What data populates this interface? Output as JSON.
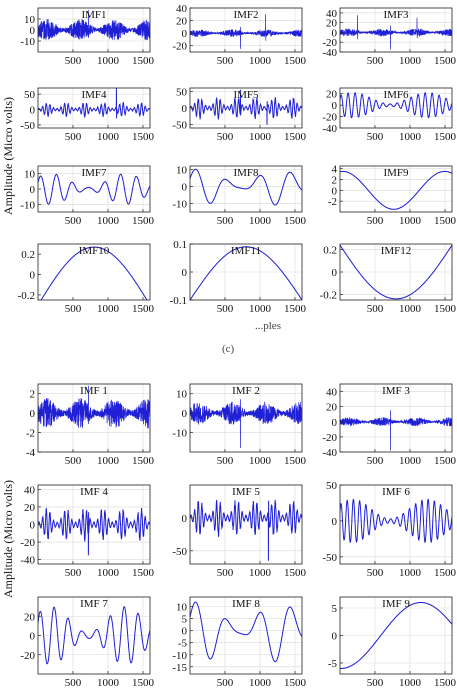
{
  "figure": {
    "ylabel": "Amplitude (Micro volts)",
    "xlabel": "...ples",
    "caption": "(c)"
  },
  "style": {
    "line_color": "#1f1fd6",
    "grid_color": "#d9d9d9",
    "axis_color": "#222222"
  },
  "chart_data": [
    {
      "type": "line",
      "group": "a",
      "title": "IMF1",
      "x_range": [
        1,
        1600
      ],
      "ylim": [
        -20,
        20
      ],
      "yticks": [
        -10,
        0,
        10
      ],
      "xticks": [
        500,
        1000,
        1500
      ],
      "mode": "noise",
      "amp": 10,
      "spikes": [
        [
          720,
          18
        ]
      ],
      "grid": true
    },
    {
      "type": "line",
      "group": "a",
      "title": "IMF2",
      "x_range": [
        1,
        1600
      ],
      "ylim": [
        -30,
        40
      ],
      "yticks": [
        -20,
        0,
        20,
        40
      ],
      "xticks": [
        500,
        1000,
        1500
      ],
      "mode": "noise",
      "amp": 6,
      "spikes": [
        [
          720,
          -25
        ],
        [
          1080,
          30
        ]
      ],
      "grid": true
    },
    {
      "type": "line",
      "group": "a",
      "title": "IMF3",
      "x_range": [
        1,
        1600
      ],
      "ylim": [
        -40,
        50
      ],
      "yticks": [
        -40,
        -20,
        0,
        20,
        40
      ],
      "xticks": [
        500,
        1000,
        1500
      ],
      "mode": "noise",
      "amp": 8,
      "spikes": [
        [
          720,
          -35
        ],
        [
          250,
          35
        ],
        [
          1100,
          30
        ]
      ],
      "grid": true
    },
    {
      "type": "line",
      "group": "a",
      "title": "IMF4",
      "x_range": [
        1,
        1600
      ],
      "ylim": [
        -60,
        70
      ],
      "yticks": [
        -50,
        0,
        50
      ],
      "xticks": [
        500,
        1000,
        1500
      ],
      "mode": "burst",
      "amp": 25,
      "spikes": [
        [
          1120,
          70
        ]
      ],
      "grid": true
    },
    {
      "type": "line",
      "group": "a",
      "title": "IMF5",
      "x_range": [
        1,
        1600
      ],
      "ylim": [
        -60,
        60
      ],
      "yticks": [
        -50,
        0,
        50
      ],
      "xticks": [
        500,
        1000,
        1500
      ],
      "mode": "burst",
      "amp": 35,
      "spikes": [
        [
          720,
          55
        ],
        [
          1100,
          -50
        ]
      ],
      "grid": true
    },
    {
      "type": "line",
      "group": "a",
      "title": "IMF6",
      "x_range": [
        1,
        1600
      ],
      "ylim": [
        -40,
        30
      ],
      "yticks": [
        -40,
        -20,
        0,
        20
      ],
      "xticks": [
        500,
        1000,
        1500
      ],
      "mode": "wave",
      "amp": 22,
      "cycles": 16,
      "grid": true
    },
    {
      "type": "line",
      "group": "a",
      "title": "IMF7",
      "x_range": [
        1,
        1600
      ],
      "ylim": [
        -15,
        15
      ],
      "yticks": [
        -10,
        0,
        10
      ],
      "xticks": [
        500,
        1000,
        1500
      ],
      "mode": "wave",
      "amp": 10,
      "cycles": 7,
      "grid": true
    },
    {
      "type": "line",
      "group": "a",
      "title": "IMF8",
      "x_range": [
        1,
        1600
      ],
      "ylim": [
        -15,
        12
      ],
      "yticks": [
        -10,
        0,
        10
      ],
      "xticks": [
        500,
        1000,
        1500
      ],
      "mode": "wave",
      "amp": 11,
      "cycles": 3.5,
      "grid": true
    },
    {
      "type": "line",
      "group": "a",
      "title": "IMF9",
      "x_range": [
        1,
        1600
      ],
      "ylim": [
        -4,
        4.5
      ],
      "yticks": [
        -2,
        0,
        2,
        4
      ],
      "xticks": [
        500,
        1000,
        1500
      ],
      "mode": "sine",
      "amp": 3.5,
      "cycles": 1.1,
      "phase": 1.4,
      "grid": true
    },
    {
      "type": "line",
      "group": "a",
      "title": "IMF10",
      "x_range": [
        1,
        1600
      ],
      "ylim": [
        -0.25,
        0.3
      ],
      "yticks": [
        -0.2,
        0,
        0.2
      ],
      "xticks": [
        500,
        1000,
        1500
      ],
      "mode": "arch",
      "amp": 0.3,
      "grid": false
    },
    {
      "type": "line",
      "group": "a",
      "title": "IMF11",
      "x_range": [
        1,
        1600
      ],
      "ylim": [
        -0.1,
        0.1
      ],
      "yticks": [
        -0.1,
        0,
        0.1
      ],
      "xticks": [
        500,
        1000,
        1500
      ],
      "mode": "arch",
      "amp": 0.1,
      "grid": true
    },
    {
      "type": "line",
      "group": "a",
      "title": "IMF12",
      "x_range": [
        1,
        1600
      ],
      "ylim": [
        -0.25,
        0.25
      ],
      "yticks": [
        -0.2,
        0,
        0.2
      ],
      "xticks": [
        500,
        1000,
        1500
      ],
      "mode": "bowl",
      "amp": 0.24,
      "grid": true
    },
    {
      "type": "line",
      "group": "b",
      "title": "IMF 1",
      "x_range": [
        1,
        1600
      ],
      "ylim": [
        -4,
        3
      ],
      "yticks": [
        -4,
        -2,
        0,
        2
      ],
      "xticks": [
        500,
        1000,
        1500
      ],
      "mode": "noise",
      "amp": 1.6,
      "spikes": [
        [
          720,
          2.8
        ]
      ],
      "grid": true
    },
    {
      "type": "line",
      "group": "b",
      "title": "IMF 2",
      "x_range": [
        1,
        1600
      ],
      "ylim": [
        -20,
        15
      ],
      "yticks": [
        -10,
        0,
        10
      ],
      "xticks": [
        500,
        1000,
        1500
      ],
      "mode": "noise",
      "amp": 6,
      "spikes": [
        [
          720,
          -18
        ]
      ],
      "grid": true
    },
    {
      "type": "line",
      "group": "b",
      "title": "IMF 3",
      "x_range": [
        1,
        1600
      ],
      "ylim": [
        -40,
        50
      ],
      "yticks": [
        -40,
        -20,
        0,
        20,
        40
      ],
      "xticks": [
        500,
        1000,
        1500
      ],
      "mode": "noise",
      "amp": 6,
      "spikes": [
        [
          720,
          -38
        ]
      ],
      "grid": true
    },
    {
      "type": "line",
      "group": "b",
      "title": "IMF 4",
      "x_range": [
        1,
        1600
      ],
      "ylim": [
        -45,
        45
      ],
      "yticks": [
        -40,
        -20,
        0,
        20,
        40
      ],
      "xticks": [
        500,
        1000,
        1500
      ],
      "mode": "burst",
      "amp": 20,
      "spikes": [
        [
          720,
          -35
        ]
      ],
      "grid": true
    },
    {
      "type": "line",
      "group": "b",
      "title": "IMF 5",
      "x_range": [
        1,
        1600
      ],
      "ylim": [
        -70,
        50
      ],
      "yticks": [
        -50,
        0
      ],
      "xticks": [
        500,
        1000,
        1500
      ],
      "mode": "burst",
      "amp": 30,
      "spikes": [
        [
          1120,
          -65
        ]
      ],
      "grid": true
    },
    {
      "type": "line",
      "group": "b",
      "title": "IMF 6",
      "x_range": [
        1,
        1600
      ],
      "ylim": [
        -60,
        50
      ],
      "yticks": [
        -50,
        0,
        50
      ],
      "xticks": [
        500,
        1000,
        1500
      ],
      "mode": "wave",
      "amp": 30,
      "cycles": 18,
      "grid": true
    },
    {
      "type": "line",
      "group": "b",
      "title": "IMF 7",
      "x_range": [
        1,
        1600
      ],
      "ylim": [
        -40,
        40
      ],
      "yticks": [
        -20,
        0,
        20
      ],
      "xticks": [
        500,
        1000,
        1500
      ],
      "mode": "wave",
      "amp": 30,
      "cycles": 8,
      "grid": true
    },
    {
      "type": "line",
      "group": "b",
      "title": "IMF 8",
      "x_range": [
        1,
        1600
      ],
      "ylim": [
        -18,
        14
      ],
      "yticks": [
        -15,
        -10,
        -5,
        0,
        5,
        10
      ],
      "xticks": [
        500,
        1000,
        1500
      ],
      "mode": "wave",
      "amp": 13,
      "cycles": 3.5,
      "grid": true
    },
    {
      "type": "line",
      "group": "b",
      "title": "IMF 9",
      "x_range": [
        1,
        1600
      ],
      "ylim": [
        -7,
        7
      ],
      "yticks": [
        -5,
        0,
        5
      ],
      "xticks": [
        500,
        1000,
        1500
      ],
      "mode": "sine",
      "amp": 6,
      "cycles": 0.7,
      "phase": -1.6,
      "grid": true
    }
  ]
}
